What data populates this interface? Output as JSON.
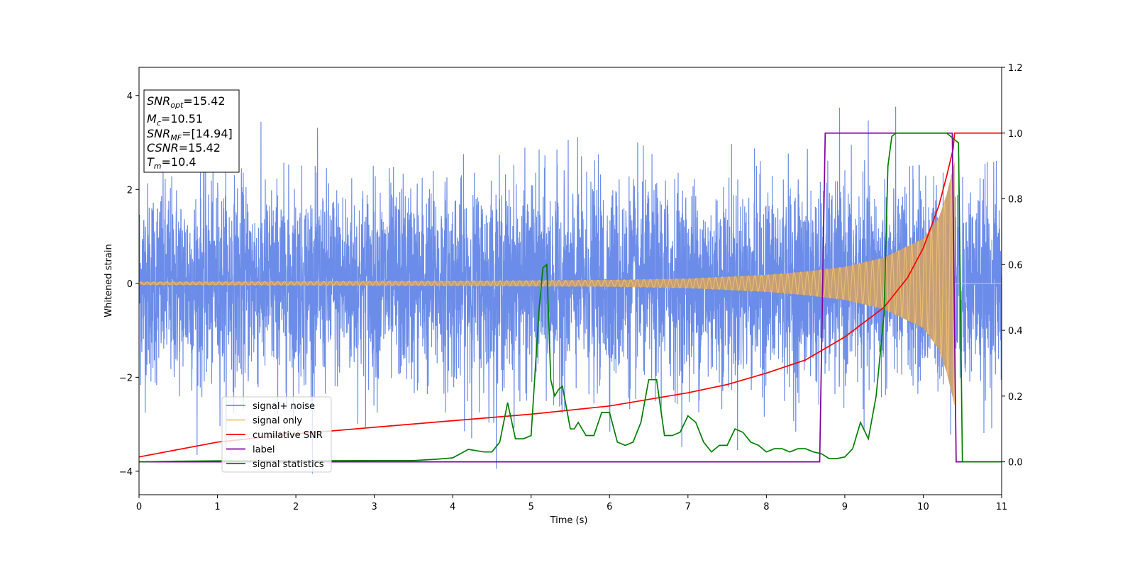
{
  "chart_data": {
    "type": "line",
    "xlabel": "Time (s)",
    "ylabel": "Whitened strain",
    "xlim": [
      0,
      11
    ],
    "ylim": [
      -4.5,
      4.6
    ],
    "y2lim": [
      -0.1,
      1.2
    ],
    "xticks": [
      0,
      1,
      2,
      3,
      4,
      5,
      6,
      7,
      8,
      9,
      10,
      11
    ],
    "yticks": [
      -4,
      -2,
      0,
      2,
      4
    ],
    "y2ticks": [
      0.0,
      0.2,
      0.4,
      0.6,
      0.8,
      1.0,
      1.2
    ],
    "grid": false,
    "legend_position": "lower-left",
    "colors": {
      "signal_noise": "#6b8ce8",
      "signal_only": "#f5c06e",
      "signal_only_fill": "#c9a070",
      "cumulative_snr": "#ff0000",
      "label": "#7f00a0",
      "signal_statistics": "#008000"
    },
    "info_box": {
      "snr_opt": {
        "name": "SNR",
        "sub": "opt",
        "value": "=15.42"
      },
      "mc": {
        "name": "M",
        "sub": "c",
        "value": "=10.51"
      },
      "snr_mf": {
        "name": "SNR",
        "sub": "MF",
        "value": "=[14.94]"
      },
      "csnr": {
        "name": "CSNR",
        "value": "=15.42"
      },
      "tm": {
        "name": "T",
        "sub": "m",
        "value": "=10.4"
      }
    },
    "series": [
      {
        "name": "signal+ noise",
        "axis": "left",
        "description_envelope": {
          "typical_amplitude": 1.8,
          "max": 4.2,
          "min": -4.1
        }
      },
      {
        "name": "signal only",
        "axis": "left",
        "envelope": {
          "t": [
            0,
            2,
            4,
            6,
            7,
            8,
            8.5,
            9,
            9.5,
            10,
            10.2,
            10.3,
            10.4,
            10.41,
            11
          ],
          "amp": [
            0.03,
            0.04,
            0.05,
            0.07,
            0.1,
            0.18,
            0.25,
            0.35,
            0.55,
            0.95,
            1.4,
            1.9,
            2.6,
            0,
            0
          ]
        }
      },
      {
        "name": "cumilative SNR",
        "axis": "right",
        "x": [
          0,
          1,
          2,
          3,
          4,
          5,
          6,
          7,
          7.5,
          8,
          8.5,
          9,
          9.5,
          9.8,
          10,
          10.2,
          10.3,
          10.38,
          10.4,
          11
        ],
        "y": [
          0.015,
          0.06,
          0.085,
          0.105,
          0.125,
          0.145,
          0.17,
          0.21,
          0.235,
          0.27,
          0.31,
          0.38,
          0.47,
          0.56,
          0.65,
          0.78,
          0.87,
          0.95,
          1.0,
          1.0
        ]
      },
      {
        "name": "label",
        "axis": "right",
        "x": [
          0,
          8.68,
          8.75,
          10.37,
          10.42,
          11
        ],
        "y": [
          0,
          0,
          1,
          1,
          0,
          0
        ]
      },
      {
        "name": "signal statistics",
        "axis": "right",
        "x": [
          0,
          0.5,
          1,
          2,
          3,
          3.5,
          3.8,
          4.0,
          4.2,
          4.4,
          4.5,
          4.6,
          4.7,
          4.8,
          4.9,
          5.0,
          5.1,
          5.15,
          5.2,
          5.25,
          5.3,
          5.35,
          5.4,
          5.5,
          5.55,
          5.6,
          5.7,
          5.8,
          5.9,
          6.0,
          6.1,
          6.2,
          6.3,
          6.4,
          6.5,
          6.6,
          6.7,
          6.8,
          6.9,
          7.0,
          7.1,
          7.2,
          7.3,
          7.4,
          7.5,
          7.6,
          7.7,
          7.8,
          7.9,
          8.0,
          8.1,
          8.2,
          8.3,
          8.4,
          8.5,
          8.6,
          8.7,
          8.8,
          8.9,
          9.0,
          9.1,
          9.2,
          9.3,
          9.4,
          9.5,
          9.55,
          9.6,
          9.65,
          9.7,
          9.8,
          10.0,
          10.2,
          10.3,
          10.35,
          10.4,
          10.45,
          10.5,
          11
        ],
        "y": [
          0.0,
          0.002,
          0.003,
          0.003,
          0.004,
          0.004,
          0.008,
          0.012,
          0.038,
          0.03,
          0.03,
          0.06,
          0.18,
          0.07,
          0.07,
          0.08,
          0.46,
          0.59,
          0.6,
          0.25,
          0.2,
          0.22,
          0.23,
          0.1,
          0.1,
          0.12,
          0.08,
          0.08,
          0.15,
          0.15,
          0.06,
          0.05,
          0.06,
          0.12,
          0.25,
          0.25,
          0.08,
          0.08,
          0.09,
          0.14,
          0.12,
          0.06,
          0.03,
          0.05,
          0.05,
          0.1,
          0.09,
          0.06,
          0.05,
          0.03,
          0.04,
          0.04,
          0.03,
          0.04,
          0.04,
          0.03,
          0.025,
          0.01,
          0.01,
          0.015,
          0.04,
          0.12,
          0.07,
          0.2,
          0.45,
          0.9,
          0.99,
          1.0,
          1.0,
          1.0,
          1.0,
          1.0,
          1.0,
          0.99,
          0.98,
          0.97,
          0.0,
          0.0
        ]
      }
    ]
  }
}
